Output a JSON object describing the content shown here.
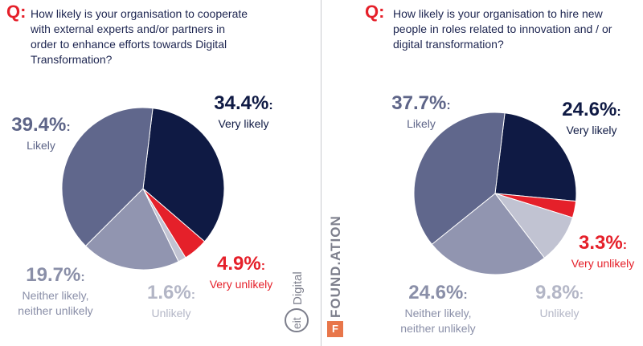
{
  "colors": {
    "very_likely": "#0f1a44",
    "likely": "#60678c",
    "neither": "#9195b0",
    "unlikely": "#c1c3d2",
    "very_unlikely": "#e5202a",
    "accent": "#e5202a",
    "text": "#1d2550"
  },
  "chart_data": [
    {
      "type": "pie",
      "question_mark": "Q:",
      "title": "How likely is your organisation to cooperate with external experts and/or partners in order to enhance efforts towards Digital Transformation?",
      "title_lines": [
        "How likely is your organisation to cooperate",
        "with external experts and/or partners in",
        "order to enhance efforts towards Digital",
        "Transformation?"
      ],
      "slices": [
        {
          "key": "very_likely",
          "label": "Very likely",
          "value": 34.4,
          "display": "34.4%",
          "label_lines": [
            "Very likely"
          ]
        },
        {
          "key": "very_unlikely",
          "label": "Very unlikely",
          "value": 4.9,
          "display": "4.9%",
          "label_lines": [
            "Very unlikely"
          ]
        },
        {
          "key": "unlikely",
          "label": "Unlikely",
          "value": 1.6,
          "display": "1.6%",
          "label_lines": [
            "Unlikely"
          ]
        },
        {
          "key": "neither",
          "label": "Neither likely, neither unlikely",
          "value": 19.7,
          "display": "19.7%",
          "label_lines": [
            "Neither likely,",
            "neither unlikely"
          ]
        },
        {
          "key": "likely",
          "label": "Likely",
          "value": 39.4,
          "display": "39.4%",
          "label_lines": [
            "Likely"
          ]
        }
      ]
    },
    {
      "type": "pie",
      "question_mark": "Q:",
      "title": "How likely is your organisation to hire new people in roles related to innovation and / or digital transformation?",
      "title_lines": [
        "How likely is your organisation to hire new",
        "people in roles related to innovation and / or",
        "digital transformation?"
      ],
      "slices": [
        {
          "key": "very_likely",
          "label": "Very likely",
          "value": 24.6,
          "display": "24.6%",
          "label_lines": [
            "Very likely"
          ]
        },
        {
          "key": "very_unlikely",
          "label": "Very unlikely",
          "value": 3.3,
          "display": "3.3%",
          "label_lines": [
            "Very unlikely"
          ]
        },
        {
          "key": "unlikely",
          "label": "Unlikely",
          "value": 9.8,
          "display": "9.8%",
          "label_lines": [
            "Unlikely"
          ]
        },
        {
          "key": "neither",
          "label": "Neither likely, neither unlikely",
          "value": 24.6,
          "display": "24.6%",
          "label_lines": [
            "Neither likely,",
            "neither unlikely"
          ]
        },
        {
          "key": "likely",
          "label": "Likely",
          "value": 37.7,
          "display": "37.7%",
          "label_lines": [
            "Likely"
          ]
        }
      ]
    }
  ],
  "logos": {
    "eit": "eit",
    "digital": "Digital",
    "foundation": "FOUND.ATION",
    "foundation_mark": "F"
  }
}
